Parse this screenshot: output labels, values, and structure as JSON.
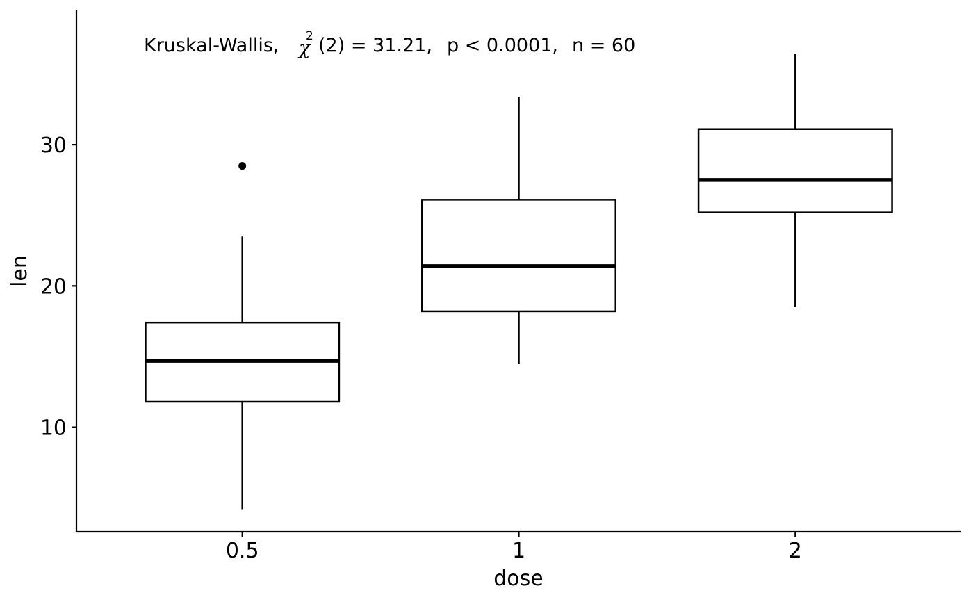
{
  "chart_data": {
    "type": "box",
    "xlabel": "dose",
    "ylabel": "len",
    "categories": [
      "0.5",
      "1",
      "2"
    ],
    "ylim": [
      2.6,
      39.5
    ],
    "yticks": [
      10,
      20,
      30
    ],
    "ytick_labels": [
      "10",
      "20",
      "30"
    ],
    "grid": false,
    "legend": "none",
    "boxes": [
      {
        "category": "0.5",
        "whisker_low": 4.2,
        "q1": 11.8,
        "median": 14.7,
        "q3": 17.4,
        "whisker_high": 23.5,
        "outliers": [
          28.5
        ]
      },
      {
        "category": "1",
        "whisker_low": 14.5,
        "q1": 18.2,
        "median": 21.4,
        "q3": 26.1,
        "whisker_high": 33.4,
        "outliers": []
      },
      {
        "category": "2",
        "whisker_low": 18.5,
        "q1": 25.2,
        "median": 27.5,
        "q3": 31.1,
        "whisker_high": 36.4,
        "outliers": []
      }
    ],
    "annotation": {
      "test": "Kruskal-Wallis,",
      "chi": "χ",
      "chi_superscript": "2",
      "df": "(2) = 31.21,",
      "p": "p < 0.0001,",
      "n": "n = 60"
    }
  }
}
